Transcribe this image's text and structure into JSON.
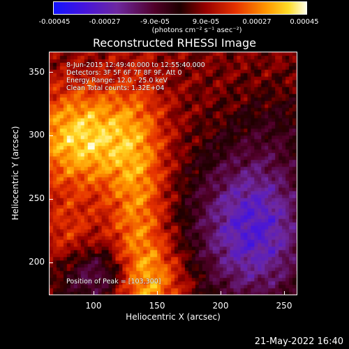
{
  "colorbar": {
    "ticks": [
      "-0.00045",
      "-0.00027",
      "-9.0e-05",
      "9.0e-05",
      "0.00027",
      "0.00045"
    ],
    "unit": "(photons cm⁻² s⁻¹ asec⁻²)",
    "range": [
      -0.00045,
      0.00045
    ]
  },
  "chart_data": {
    "type": "heatmap",
    "title": "Reconstructed RHESSI Image",
    "xlabel": "Heliocentric X (arcsec)",
    "ylabel": "Heliocentric Y (arcsec)",
    "xlim": [
      67,
      262
    ],
    "ylim": [
      175,
      370
    ],
    "xticks": [
      "100",
      "150",
      "200",
      "250"
    ],
    "yticks": [
      "200",
      "250",
      "300",
      "350"
    ],
    "colormap": "blue-purple-red-yellow-white",
    "peak": [
      103,
      300
    ],
    "annotations": {
      "time": "8-Jun-2015 12:49:40.000 to 12:55:40.000",
      "detectors": "Detectors: 3F 5F 6F 7F 8F 9F, Att 0",
      "energy": "Energy Range: 12.0 - 25.0 keV",
      "method": "Clean     Total counts: 1.32E+04",
      "peak": "Position of Peak = [103,300]"
    }
  },
  "timestamp": "21-May-2022 16:40"
}
